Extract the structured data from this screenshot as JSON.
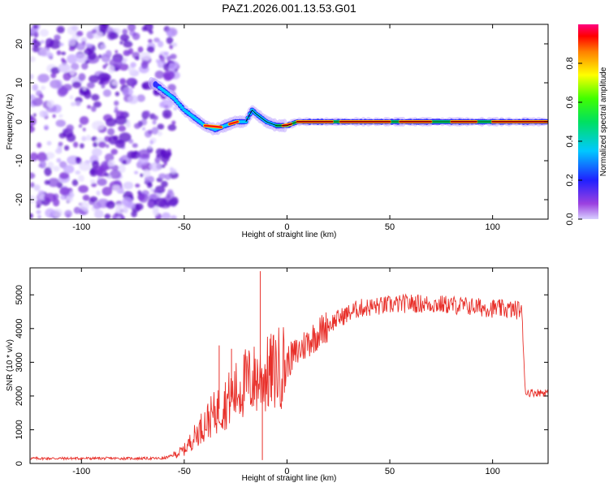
{
  "title": "PAZ1.2026.001.13.53.G01",
  "chart_data": [
    {
      "type": "heatmap",
      "title": "PAZ1.2026.001.13.53.G01",
      "xlabel": "Height of straight line (km)",
      "ylabel": "Frequency (Hz)",
      "xlim": [
        -125,
        127
      ],
      "ylim": [
        -25,
        25
      ],
      "xticks": [
        -100,
        -50,
        0,
        50,
        100
      ],
      "yticks": [
        -20,
        -10,
        0,
        10,
        20
      ],
      "colorbar": {
        "label": "Normalized spectral amplitude",
        "range": [
          0,
          1
        ],
        "ticks": [
          0.0,
          0.2,
          0.4,
          0.6,
          0.8
        ],
        "colormap": "rainbow (magenta-blue-cyan-green-yellow-red)"
      },
      "ridge": {
        "description": "frequency of spectral maximum vs height",
        "x": [
          -65,
          -60,
          -55,
          -50,
          -45,
          -40,
          -35,
          -30,
          -25,
          -20,
          -17,
          -15,
          -10,
          -5,
          0,
          5,
          10,
          20,
          30,
          50,
          70,
          90,
          110,
          127
        ],
        "y": [
          10,
          8,
          6,
          3,
          1,
          -1,
          -2,
          -1,
          0,
          0,
          3,
          2,
          0,
          -1,
          -1,
          0,
          0,
          0,
          0,
          0,
          0,
          0,
          0,
          0
        ]
      },
      "noise_region_km": [
        -125,
        -58
      ]
    },
    {
      "type": "line",
      "xlabel": "Height of straight line (km)",
      "ylabel": "SNR (10 * v/v)",
      "xlim": [
        -125,
        127
      ],
      "ylim": [
        0,
        5800
      ],
      "xticks": [
        -100,
        -50,
        0,
        50,
        100
      ],
      "yticks": [
        0,
        1000,
        2000,
        3000,
        4000,
        5000
      ],
      "series": [
        {
          "name": "SNR",
          "color": "#e8302a",
          "x": [
            -125,
            -100,
            -75,
            -60,
            -55,
            -50,
            -45,
            -40,
            -35,
            -30,
            -25,
            -20,
            -15,
            -10,
            -5,
            0,
            10,
            20,
            25,
            35,
            50,
            60,
            80,
            100,
            112,
            114,
            116,
            127
          ],
          "y": [
            150,
            150,
            150,
            150,
            250,
            400,
            800,
            1200,
            1500,
            1800,
            2100,
            2400,
            2500,
            2600,
            2800,
            3000,
            3600,
            4100,
            4300,
            4600,
            4700,
            4750,
            4700,
            4600,
            4550,
            4600,
            2100,
            2100
          ]
        }
      ],
      "spikes": [
        {
          "x": -33,
          "y": 3500
        },
        {
          "x": -27,
          "y": 3400
        },
        {
          "x": -13,
          "y": 5700
        },
        {
          "x": -12,
          "y": 100
        }
      ]
    }
  ]
}
